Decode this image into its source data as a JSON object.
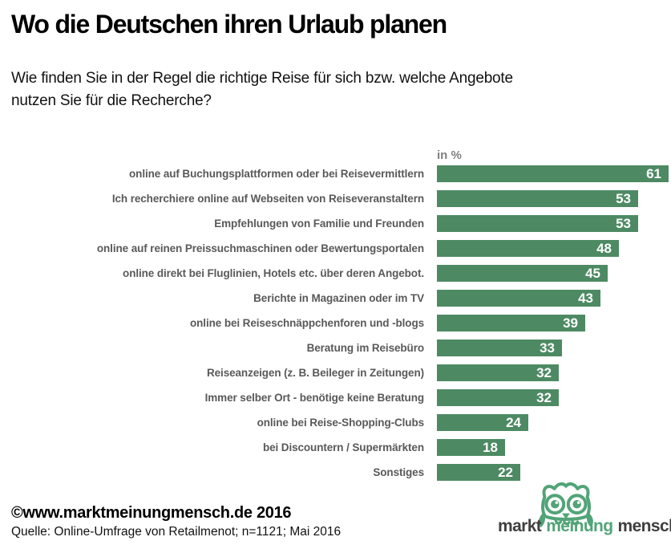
{
  "page": {
    "title": "Wo die Deutschen ihren Urlaub planen",
    "subtitle_lines": [
      "Wie finden Sie in der Regel die richtige Reise für sich bzw. welche Angebote",
      "nutzen Sie für die Recherche?"
    ]
  },
  "chart_data": {
    "type": "bar",
    "orientation": "horizontal",
    "title": "Wo die Deutschen ihren Urlaub planen",
    "unit_label": "in %",
    "categories": [
      "online auf Buchungsplattformen oder bei Reisevermittlern",
      "Ich recherchiere online auf Webseiten von Reiseveranstaltern",
      "Empfehlungen von Familie und Freunden",
      "online auf reinen Preissuchmaschinen oder Bewertungsportalen",
      "online direkt bei Fluglinien, Hotels etc. über deren Angebot.",
      "Berichte in Magazinen oder im TV",
      "online bei Reiseschnäppchenforen und -blogs",
      "Beratung im Reisebüro",
      "Reiseanzeigen (z. B. Beileger in Zeitungen)",
      "Immer selber Ort - benötige keine Beratung",
      "online bei Reise-Shopping-Clubs",
      "bei Discountern / Supermärkten",
      "Sonstiges"
    ],
    "values": [
      61,
      53,
      53,
      48,
      45,
      43,
      39,
      33,
      32,
      32,
      24,
      18,
      22
    ],
    "xlim": [
      0,
      61
    ],
    "grid": false,
    "legend": false,
    "value_labels_inside_bars": true,
    "bar_color": "#4d8a63",
    "value_label_color": "#ffffff",
    "category_label_color": "#595959"
  },
  "footer": {
    "copyright": "©www.marktmeinungmensch.de 2016",
    "source": "Quelle: Online-Umfrage von Retailmenot; n=1121; Mai 2016"
  },
  "logo": {
    "owl_icon_color": "#53a478",
    "words": [
      {
        "text": "markt",
        "color": "#3f3f3f"
      },
      {
        "text": "meinung",
        "color": "#53a478"
      },
      {
        "text": "mensch",
        "color": "#3f3f3f"
      }
    ]
  }
}
